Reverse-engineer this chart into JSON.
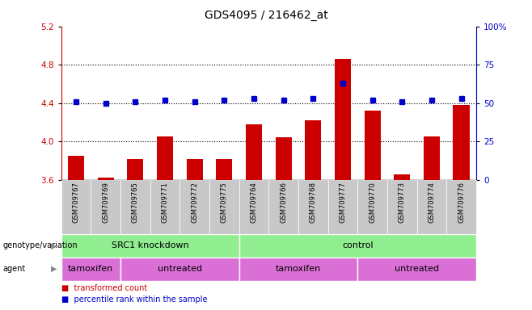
{
  "title": "GDS4095 / 216462_at",
  "samples": [
    "GSM709767",
    "GSM709769",
    "GSM709765",
    "GSM709771",
    "GSM709772",
    "GSM709775",
    "GSM709764",
    "GSM709766",
    "GSM709768",
    "GSM709777",
    "GSM709770",
    "GSM709773",
    "GSM709774",
    "GSM709776"
  ],
  "bar_values": [
    3.85,
    3.62,
    3.82,
    4.05,
    3.82,
    3.82,
    4.18,
    4.04,
    4.22,
    4.86,
    4.32,
    3.66,
    4.05,
    4.38
  ],
  "dot_values": [
    51,
    50,
    51,
    52,
    51,
    52,
    53,
    52,
    53,
    63,
    52,
    51,
    52,
    53
  ],
  "bar_color": "#cc0000",
  "dot_color": "#0000cc",
  "ylim_left": [
    3.6,
    5.2
  ],
  "ylim_right": [
    0,
    100
  ],
  "yticks_left": [
    3.6,
    4.0,
    4.4,
    4.8,
    5.2
  ],
  "yticks_right": [
    0,
    25,
    50,
    75,
    100
  ],
  "ytick_right_labels": [
    "0",
    "25",
    "50",
    "75",
    "100%"
  ],
  "hlines": [
    4.0,
    4.4,
    4.8
  ],
  "genotype_groups": [
    {
      "label": "SRC1 knockdown",
      "start": 0,
      "end": 6
    },
    {
      "label": "control",
      "start": 6,
      "end": 14
    }
  ],
  "agent_boxes": [
    {
      "label": "tamoxifen",
      "start": 0,
      "end": 2
    },
    {
      "label": "untreated",
      "start": 2,
      "end": 6
    },
    {
      "label": "tamoxifen",
      "start": 6,
      "end": 10
    },
    {
      "label": "untreated",
      "start": 10,
      "end": 14
    }
  ],
  "background_color": "#ffffff",
  "genotype_color": "#90ee90",
  "agent_color": "#da70d6",
  "xticklabel_bg": "#c8c8c8",
  "label_fontsize": 7,
  "tick_fontsize": 7.5,
  "annotation_fontsize": 8
}
